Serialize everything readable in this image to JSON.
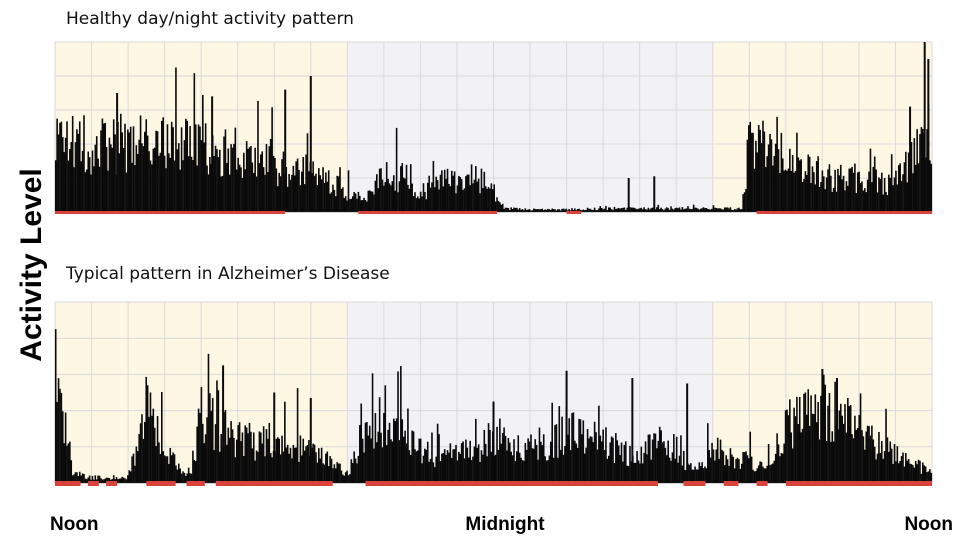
{
  "chart_data": {
    "type": "bar",
    "ylabel": "Activity Level",
    "x_ticks": [
      "Noon",
      "Midnight",
      "Noon"
    ],
    "x_domain": [
      0,
      24
    ],
    "y_domain": [
      0,
      1
    ],
    "grid": true,
    "colors": {
      "day_shading": "#fdf7e4",
      "night_shading": "#f2f2f6",
      "grid": "#dadada",
      "bars": "#0a0a0a",
      "sleep_marker": "#d9433b",
      "baseline": "#111111"
    },
    "shaded_periods": [
      {
        "period": "day",
        "start": 0,
        "end": 8
      },
      {
        "period": "night",
        "start": 8,
        "end": 18
      },
      {
        "period": "day",
        "start": 18,
        "end": 24
      }
    ],
    "panels": [
      {
        "title": "Healthy day/night activity pattern",
        "activity_profile": [
          [
            0.0,
            0.38
          ],
          [
            0.5,
            0.42
          ],
          [
            1.0,
            0.4
          ],
          [
            1.5,
            0.38
          ],
          [
            2.0,
            0.42
          ],
          [
            2.5,
            0.4
          ],
          [
            3.0,
            0.4
          ],
          [
            3.5,
            0.42
          ],
          [
            4.0,
            0.4
          ],
          [
            4.5,
            0.36
          ],
          [
            5.0,
            0.34
          ],
          [
            5.5,
            0.32
          ],
          [
            6.0,
            0.28
          ],
          [
            6.5,
            0.24
          ],
          [
            7.0,
            0.22
          ],
          [
            7.5,
            0.18
          ],
          [
            8.0,
            0.12
          ],
          [
            8.5,
            0.08
          ],
          [
            9.0,
            0.22
          ],
          [
            9.5,
            0.2
          ],
          [
            10.0,
            0.1
          ],
          [
            10.5,
            0.2
          ],
          [
            11.0,
            0.16
          ],
          [
            11.5,
            0.22
          ],
          [
            12.0,
            0.12
          ],
          [
            12.3,
            0.02
          ],
          [
            13.0,
            0.015
          ],
          [
            14.0,
            0.015
          ],
          [
            15.0,
            0.02
          ],
          [
            16.0,
            0.02
          ],
          [
            17.0,
            0.02
          ],
          [
            18.0,
            0.02
          ],
          [
            18.8,
            0.02
          ],
          [
            19.0,
            0.42
          ],
          [
            19.5,
            0.36
          ],
          [
            20.0,
            0.32
          ],
          [
            20.5,
            0.28
          ],
          [
            21.0,
            0.22
          ],
          [
            21.5,
            0.2
          ],
          [
            22.0,
            0.2
          ],
          [
            22.5,
            0.18
          ],
          [
            23.0,
            0.18
          ],
          [
            23.5,
            0.3
          ],
          [
            23.8,
            0.6
          ],
          [
            24.0,
            0.4
          ]
        ],
        "peaks": [
          {
            "x": 7.0,
            "y": 0.8
          },
          {
            "x": 6.3,
            "y": 0.72
          },
          {
            "x": 4.3,
            "y": 0.68
          },
          {
            "x": 1.7,
            "y": 0.7
          },
          {
            "x": 23.8,
            "y": 1.0
          },
          {
            "x": 23.9,
            "y": 0.9
          },
          {
            "x": 23.4,
            "y": 0.62
          },
          {
            "x": 15.7,
            "y": 0.2
          },
          {
            "x": 16.4,
            "y": 0.21
          }
        ],
        "sleep_segments": [
          [
            0,
            6.3
          ],
          [
            8.3,
            12.1
          ],
          [
            14.0,
            14.4
          ],
          [
            19.2,
            24.0
          ]
        ]
      },
      {
        "title": "Typical pattern in Alzheimer’s Disease",
        "activity_profile": [
          [
            0.0,
            0.45
          ],
          [
            0.3,
            0.3
          ],
          [
            0.5,
            0.05
          ],
          [
            1.0,
            0.03
          ],
          [
            1.5,
            0.03
          ],
          [
            2.0,
            0.03
          ],
          [
            2.5,
            0.4
          ],
          [
            3.0,
            0.2
          ],
          [
            3.5,
            0.05
          ],
          [
            3.8,
            0.08
          ],
          [
            4.0,
            0.4
          ],
          [
            4.5,
            0.3
          ],
          [
            5.0,
            0.25
          ],
          [
            5.5,
            0.22
          ],
          [
            6.0,
            0.24
          ],
          [
            6.5,
            0.22
          ],
          [
            7.0,
            0.18
          ],
          [
            7.5,
            0.12
          ],
          [
            8.0,
            0.05
          ],
          [
            8.5,
            0.3
          ],
          [
            9.0,
            0.35
          ],
          [
            9.5,
            0.25
          ],
          [
            10.0,
            0.18
          ],
          [
            10.5,
            0.14
          ],
          [
            11.0,
            0.2
          ],
          [
            11.5,
            0.18
          ],
          [
            12.0,
            0.25
          ],
          [
            12.5,
            0.22
          ],
          [
            13.0,
            0.2
          ],
          [
            13.5,
            0.18
          ],
          [
            14.0,
            0.3
          ],
          [
            14.5,
            0.25
          ],
          [
            15.0,
            0.22
          ],
          [
            15.5,
            0.18
          ],
          [
            16.0,
            0.14
          ],
          [
            16.5,
            0.25
          ],
          [
            17.0,
            0.18
          ],
          [
            17.5,
            0.05
          ],
          [
            18.0,
            0.2
          ],
          [
            18.5,
            0.15
          ],
          [
            19.0,
            0.12
          ],
          [
            19.5,
            0.1
          ],
          [
            20.0,
            0.3
          ],
          [
            20.5,
            0.35
          ],
          [
            21.0,
            0.42
          ],
          [
            21.5,
            0.38
          ],
          [
            22.0,
            0.3
          ],
          [
            22.5,
            0.22
          ],
          [
            23.0,
            0.15
          ],
          [
            23.5,
            0.1
          ],
          [
            24.0,
            0.06
          ]
        ],
        "peaks": [
          {
            "x": 4.6,
            "y": 0.65
          },
          {
            "x": 6.0,
            "y": 0.5
          },
          {
            "x": 7.0,
            "y": 0.47
          },
          {
            "x": 14.0,
            "y": 0.62
          },
          {
            "x": 15.8,
            "y": 0.58
          },
          {
            "x": 17.3,
            "y": 0.55
          },
          {
            "x": 21.0,
            "y": 0.63
          },
          {
            "x": 21.4,
            "y": 0.58
          },
          {
            "x": 12.0,
            "y": 0.45
          }
        ],
        "sleep_segments": [
          [
            0,
            0.7
          ],
          [
            0.9,
            1.2
          ],
          [
            1.4,
            1.7
          ],
          [
            2.5,
            3.3
          ],
          [
            3.6,
            4.1
          ],
          [
            4.4,
            7.6
          ],
          [
            8.5,
            16.5
          ],
          [
            17.2,
            17.8
          ],
          [
            18.3,
            18.7
          ],
          [
            19.2,
            19.5
          ],
          [
            20.0,
            24.0
          ]
        ]
      }
    ]
  }
}
